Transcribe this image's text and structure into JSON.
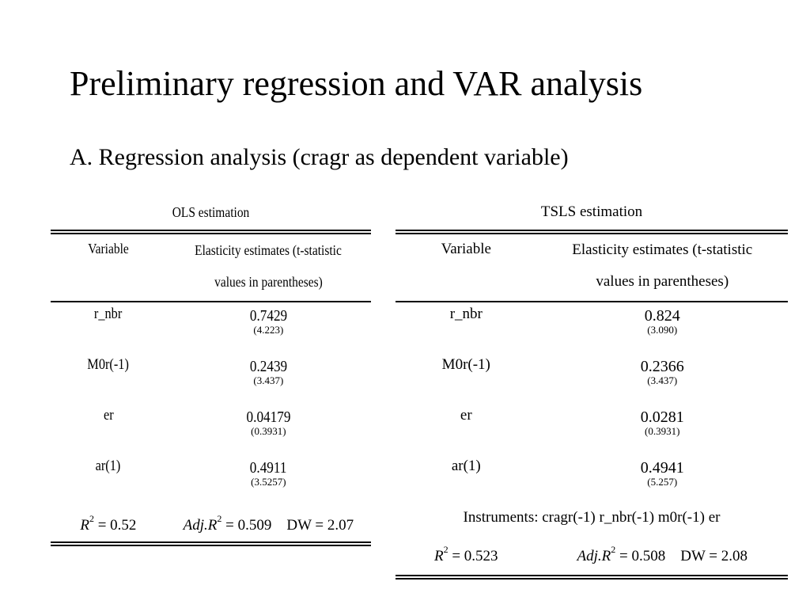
{
  "slide": {
    "title": "Preliminary regression and VAR analysis",
    "subtitle": "A. Regression analysis (cragr as dependent variable)"
  },
  "ols": {
    "caption": "OLS estimation",
    "header_variable": "Variable",
    "header_estimates_line1": "Elasticity estimates (t-statistic",
    "header_estimates_line2": "values in parentheses)",
    "rows": [
      {
        "variable": "r_nbr",
        "coef": "0.7429",
        "tstat": "(4.223)"
      },
      {
        "variable": "M0r(-1)",
        "coef": "0.2439",
        "tstat": "(3.437)"
      },
      {
        "variable": "er",
        "coef": "0.04179",
        "tstat": "(0.3931)"
      },
      {
        "variable": "ar(1)",
        "coef": "0.4911",
        "tstat": "(3.5257)"
      }
    ],
    "r2_label": "R",
    "r2_exp": "2",
    "r2_value": "= 0.52",
    "adjr2_label": "Adj.R",
    "adjr2_exp": "2",
    "adjr2_value": "= 0.509",
    "dw": "DW = 2.07"
  },
  "tsls": {
    "caption": "TSLS estimation",
    "header_variable": "Variable",
    "header_estimates_line1": "Elasticity estimates (t-statistic",
    "header_estimates_line2": "values in parentheses)",
    "rows": [
      {
        "variable": "r_nbr",
        "coef": "0.824",
        "tstat": "(3.090)"
      },
      {
        "variable": "M0r(-1)",
        "coef": "0.2366",
        "tstat": "(3.437)"
      },
      {
        "variable": "er",
        "coef": "0.0281",
        "tstat": "(0.3931)"
      },
      {
        "variable": "ar(1)",
        "coef": "0.4941",
        "tstat": "(5.257)"
      }
    ],
    "instruments": "Instruments: cragr(-1) r_nbr(-1) m0r(-1) er",
    "r2_label": "R",
    "r2_exp": "2",
    "r2_value": "= 0.523",
    "adjr2_label": "Adj.R",
    "adjr2_exp": "2",
    "adjr2_value": "= 0.508",
    "dw": "DW = 2.08"
  }
}
